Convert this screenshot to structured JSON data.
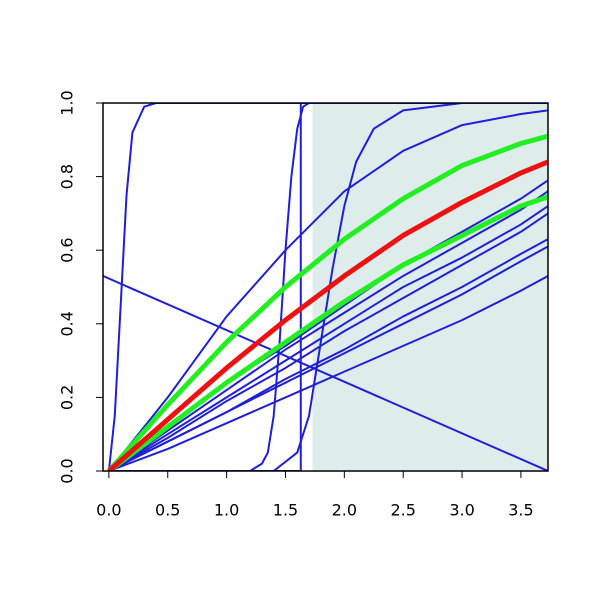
{
  "chart_data": {
    "type": "line",
    "xlim": [
      -0.05,
      3.73
    ],
    "ylim": [
      0,
      1
    ],
    "xticks": [
      {
        "value": 0,
        "label": "0.0"
      },
      0.5,
      {
        "value": 1,
        "label": "1.0"
      },
      1.5,
      {
        "value": 2,
        "label": "2.0"
      },
      2.5,
      {
        "value": 3,
        "label": "3.0"
      },
      3.5
    ],
    "yticks": [
      {
        "value": 0,
        "label": "0.0"
      },
      0.2,
      0.4,
      0.6,
      0.8,
      {
        "value": 1,
        "label": "1.0"
      }
    ],
    "shaded_xrange": [
      1.73,
      3.73
    ],
    "shade_color": "#dfecec",
    "series": [
      {
        "color": "#1f1fd6",
        "linewidth": 2,
        "x": [
          0,
          0.05,
          0.1,
          0.15,
          0.2,
          0.3,
          0.4,
          3.73
        ],
        "values": [
          0,
          0.15,
          0.45,
          0.75,
          0.92,
          0.99,
          1,
          1
        ]
      },
      {
        "color": "#1f1fd6",
        "linewidth": 2,
        "x": [
          0,
          1.63,
          1.63,
          3.73
        ],
        "values": [
          0,
          0,
          1,
          1
        ]
      },
      {
        "color": "#1f1fd6",
        "linewidth": 2,
        "x": [
          0,
          1.2,
          1.3,
          1.35,
          1.4,
          1.45,
          1.5,
          1.55,
          1.6,
          1.65,
          1.7,
          3.73
        ],
        "values": [
          0,
          0,
          0.02,
          0.05,
          0.15,
          0.35,
          0.6,
          0.8,
          0.93,
          0.99,
          1,
          1
        ]
      },
      {
        "color": "#1f1fd6",
        "linewidth": 2,
        "x": [
          0,
          1.4,
          1.6,
          1.7,
          1.8,
          1.9,
          2.0,
          2.1,
          2.25,
          2.5,
          3.0,
          3.73
        ],
        "values": [
          0,
          0,
          0.05,
          0.15,
          0.35,
          0.55,
          0.72,
          0.84,
          0.93,
          0.98,
          1,
          1
        ]
      },
      {
        "color": "#1f1fd6",
        "linewidth": 2,
        "x": [
          0,
          0.5,
          1,
          1.5,
          2,
          2.5,
          3,
          3.5,
          3.73
        ],
        "values": [
          0,
          0.2,
          0.42,
          0.6,
          0.76,
          0.87,
          0.94,
          0.97,
          0.98
        ]
      },
      {
        "color": "#1f1fd6",
        "linewidth": 2,
        "x": [
          -0.05,
          3.73
        ],
        "values": [
          0.53,
          0
        ]
      },
      {
        "color": "#1f1fd6",
        "linewidth": 2,
        "x": [
          0,
          0.5,
          1,
          1.5,
          2,
          2.5,
          3,
          3.5,
          3.73
        ],
        "values": [
          0,
          0.12,
          0.24,
          0.34,
          0.45,
          0.56,
          0.65,
          0.74,
          0.79
        ]
      },
      {
        "color": "#1f1fd6",
        "linewidth": 2,
        "x": [
          0,
          0.5,
          1,
          1.5,
          2,
          2.5,
          3,
          3.5,
          3.73
        ],
        "values": [
          0,
          0.11,
          0.22,
          0.33,
          0.43,
          0.53,
          0.62,
          0.71,
          0.76
        ]
      },
      {
        "color": "#1f1fd6",
        "linewidth": 2,
        "x": [
          0,
          0.5,
          1,
          1.5,
          2,
          2.5,
          3,
          3.5,
          3.73
        ],
        "values": [
          0,
          0.1,
          0.2,
          0.3,
          0.4,
          0.5,
          0.58,
          0.67,
          0.72
        ]
      },
      {
        "color": "#1f1fd6",
        "linewidth": 2,
        "x": [
          0,
          0.5,
          1,
          1.5,
          2,
          2.5,
          3,
          3.5,
          3.73
        ],
        "values": [
          0,
          0.09,
          0.19,
          0.28,
          0.38,
          0.47,
          0.56,
          0.65,
          0.7
        ]
      },
      {
        "color": "#1f1fd6",
        "linewidth": 2,
        "x": [
          0,
          0.5,
          1,
          1.5,
          2,
          2.5,
          3,
          3.5,
          3.73
        ],
        "values": [
          0,
          0.08,
          0.16,
          0.25,
          0.33,
          0.42,
          0.5,
          0.59,
          0.63
        ]
      },
      {
        "color": "#1f1fd6",
        "linewidth": 2,
        "x": [
          0,
          0.5,
          1,
          1.5,
          2,
          2.5,
          3,
          3.5,
          3.73
        ],
        "values": [
          0,
          0.08,
          0.16,
          0.24,
          0.32,
          0.4,
          0.48,
          0.57,
          0.61
        ]
      },
      {
        "color": "#1f1fd6",
        "linewidth": 2,
        "x": [
          0,
          0.5,
          1,
          1.5,
          2,
          2.5,
          3,
          3.5,
          3.73
        ],
        "values": [
          0,
          0.06,
          0.13,
          0.2,
          0.27,
          0.34,
          0.41,
          0.49,
          0.53
        ]
      },
      {
        "color": "#22ee22",
        "linewidth": 5,
        "x": [
          0,
          0.5,
          1,
          1.5,
          2,
          2.5,
          3,
          3.5,
          3.73
        ],
        "values": [
          0,
          0.18,
          0.35,
          0.5,
          0.63,
          0.74,
          0.83,
          0.89,
          0.91
        ]
      },
      {
        "color": "#22ee22",
        "linewidth": 5,
        "x": [
          0,
          0.5,
          1,
          1.5,
          2,
          2.5,
          3,
          3.5,
          3.73
        ],
        "values": [
          0,
          0.12,
          0.24,
          0.35,
          0.46,
          0.56,
          0.64,
          0.72,
          0.745
        ]
      },
      {
        "color": "#ee1111",
        "linewidth": 5,
        "x": [
          0,
          0.5,
          1,
          1.5,
          2,
          2.5,
          3,
          3.5,
          3.73
        ],
        "values": [
          0,
          0.14,
          0.28,
          0.41,
          0.53,
          0.64,
          0.73,
          0.81,
          0.84
        ]
      }
    ]
  }
}
